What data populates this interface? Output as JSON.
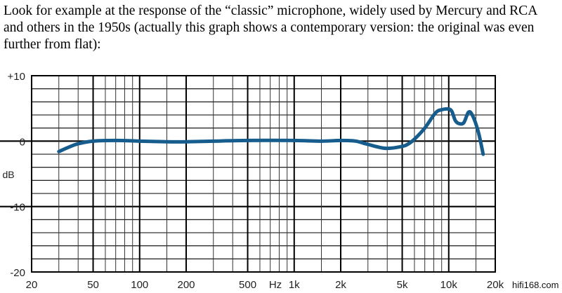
{
  "paragraph": "Look for example at the response of the “classic” microphone, widely used by Mercury and RCA and others in the 1950s (actually this graph shows a contemporary version: the original was even further from flat):",
  "watermark": "hifi168.com",
  "chart_data": {
    "type": "line",
    "title": "",
    "xlabel": "Hz",
    "ylabel": "dB",
    "x_scale": "log",
    "xlim": [
      20,
      20000
    ],
    "ylim": [
      -20,
      10
    ],
    "grid": true,
    "x_tick_labels": [
      {
        "value": 20,
        "label": "20"
      },
      {
        "value": 50,
        "label": "50"
      },
      {
        "value": 100,
        "label": "100"
      },
      {
        "value": 200,
        "label": "200"
      },
      {
        "value": 500,
        "label": "500"
      },
      {
        "value": 1000,
        "label": "1k"
      },
      {
        "value": 2000,
        "label": "2k"
      },
      {
        "value": 5000,
        "label": "5k"
      },
      {
        "value": 10000,
        "label": "10k"
      },
      {
        "value": 20000,
        "label": "20k"
      }
    ],
    "y_tick_labels": [
      {
        "value": 10,
        "label": "+10"
      },
      {
        "value": 0,
        "label": "0"
      },
      {
        "value": -10,
        "label": "-10"
      },
      {
        "value": -20,
        "label": "-20"
      }
    ],
    "x_gridlines": [
      20,
      30,
      40,
      50,
      60,
      70,
      80,
      90,
      100,
      150,
      200,
      300,
      400,
      500,
      600,
      700,
      800,
      900,
      1000,
      1500,
      2000,
      3000,
      4000,
      5000,
      6000,
      7000,
      8000,
      9000,
      10000,
      15000,
      20000
    ],
    "x_major_gridlines": [
      20,
      50,
      100,
      200,
      500,
      1000,
      2000,
      5000,
      10000,
      20000
    ],
    "y_gridlines": [
      10,
      8,
      6,
      4,
      2,
      0,
      -2,
      -4,
      -6,
      -8,
      -10,
      -12,
      -14,
      -16,
      -18,
      -20
    ],
    "y_major_gridlines": [
      0,
      -10
    ],
    "series": [
      {
        "color": "#165c8d",
        "x": [
          30,
          35,
          40,
          50,
          70,
          100,
          150,
          200,
          300,
          500,
          1000,
          1500,
          2000,
          2500,
          3000,
          3900,
          5000,
          5500,
          6000,
          7000,
          8200,
          9000,
          10000,
          10500,
          11000,
          11600,
          12500,
          13400,
          14200,
          15500,
          16700
        ],
        "y": [
          -1.6,
          -0.9,
          -0.4,
          0,
          0.1,
          0,
          -0.1,
          -0.1,
          0,
          0.1,
          0.1,
          0,
          0.1,
          0,
          -0.5,
          -1.1,
          -0.8,
          -0.4,
          0.3,
          2.0,
          4.3,
          4.8,
          4.9,
          4.5,
          3.2,
          2.7,
          2.8,
          4.4,
          4.0,
          1.5,
          -2.0
        ]
      }
    ]
  }
}
